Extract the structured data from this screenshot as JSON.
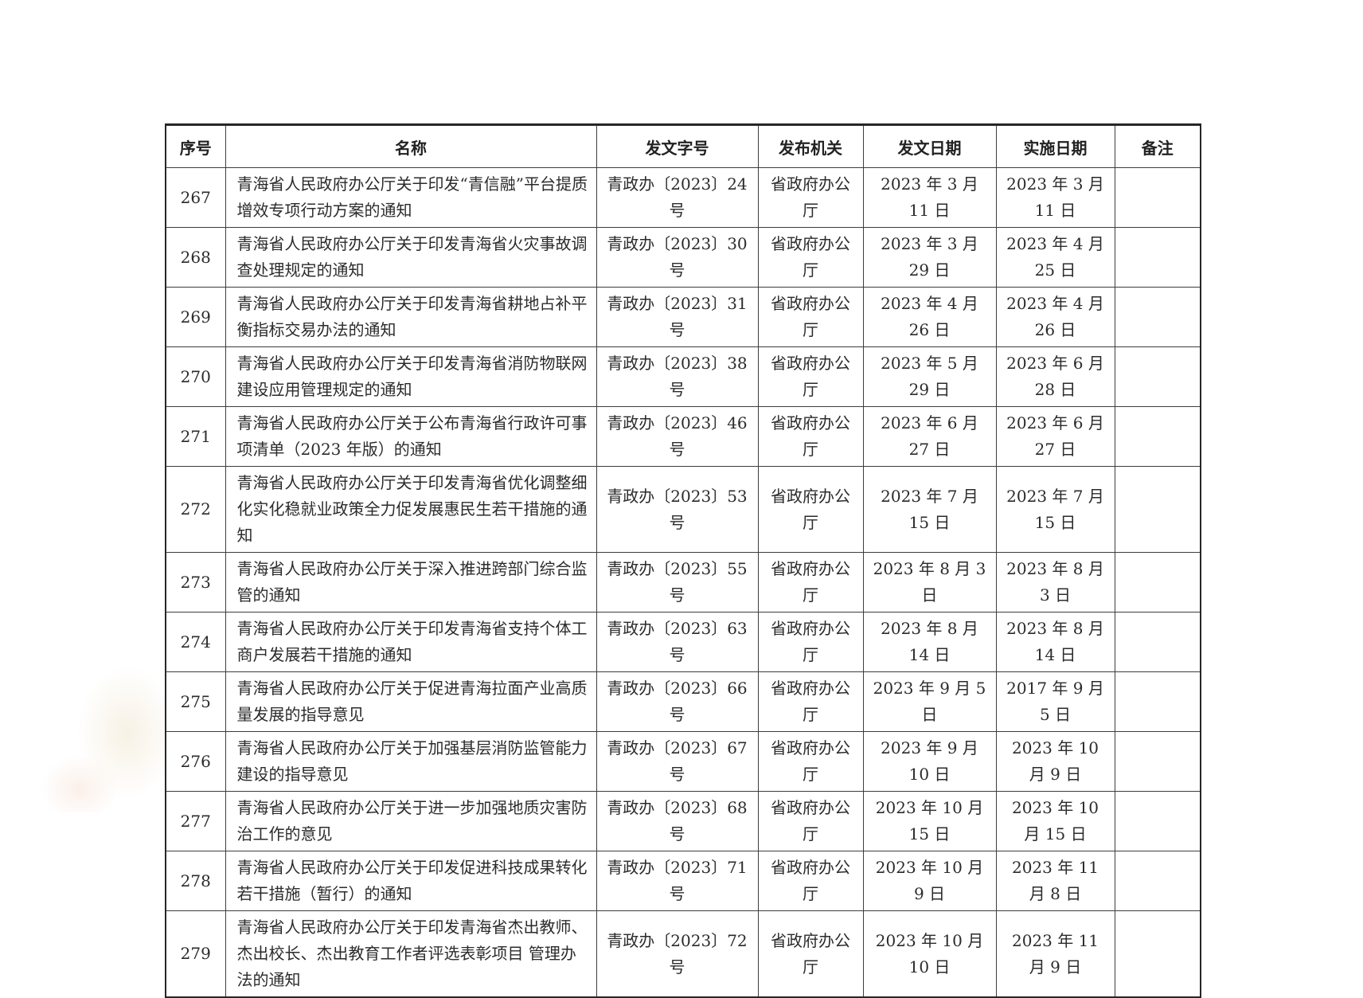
{
  "table": {
    "headers": [
      "序号",
      "名称",
      "发文字号",
      "发布机关",
      "发文日期",
      "实施日期",
      "备注"
    ],
    "rows": [
      {
        "no": "267",
        "name": "青海省人民政府办公厅关于印发“青信融”平台提质增效专项行动方案的通知",
        "doc_no": "青政办〔2023〕24 号",
        "agency": "省政府办公厅",
        "issue_date": "2023 年 3 月 11 日",
        "impl_date": "2023 年 3 月 11 日",
        "note": ""
      },
      {
        "no": "268",
        "name": "青海省人民政府办公厅关于印发青海省火灾事故调查处理规定的通知",
        "doc_no": "青政办〔2023〕30 号",
        "agency": "省政府办公厅",
        "issue_date": "2023 年 3 月 29 日",
        "impl_date": "2023 年 4 月 25 日",
        "note": ""
      },
      {
        "no": "269",
        "name": "青海省人民政府办公厅关于印发青海省耕地占补平衡指标交易办法的通知",
        "doc_no": "青政办〔2023〕31 号",
        "agency": "省政府办公厅",
        "issue_date": "2023 年 4 月 26 日",
        "impl_date": "2023 年 4 月 26 日",
        "note": ""
      },
      {
        "no": "270",
        "name": "青海省人民政府办公厅关于印发青海省消防物联网建设应用管理规定的通知",
        "doc_no": "青政办〔2023〕38 号",
        "agency": "省政府办公厅",
        "issue_date": "2023 年 5 月 29 日",
        "impl_date": "2023 年 6 月 28 日",
        "note": ""
      },
      {
        "no": "271",
        "name": "青海省人民政府办公厅关于公布青海省行政许可事项清单（2023 年版）的通知",
        "doc_no": "青政办〔2023〕46 号",
        "agency": "省政府办公厅",
        "issue_date": "2023 年 6 月 27 日",
        "impl_date": "2023 年 6 月 27 日",
        "note": ""
      },
      {
        "no": "272",
        "name": "青海省人民政府办公厅关于印发青海省优化调整细化实化稳就业政策全力促发展惠民生若干措施的通知",
        "doc_no": "青政办〔2023〕53 号",
        "agency": "省政府办公厅",
        "issue_date": "2023 年 7 月 15 日",
        "impl_date": "2023 年 7 月 15 日",
        "note": ""
      },
      {
        "no": "273",
        "name": "青海省人民政府办公厅关于深入推进跨部门综合监管的通知",
        "doc_no": "青政办〔2023〕55 号",
        "agency": "省政府办公厅",
        "issue_date": "2023 年 8 月 3 日",
        "impl_date": "2023 年 8 月 3 日",
        "note": ""
      },
      {
        "no": "274",
        "name": "青海省人民政府办公厅关于印发青海省支持个体工商户发展若干措施的通知",
        "doc_no": "青政办〔2023〕63 号",
        "agency": "省政府办公厅",
        "issue_date": "2023 年 8 月 14 日",
        "impl_date": "2023 年 8 月 14 日",
        "note": ""
      },
      {
        "no": "275",
        "name": "青海省人民政府办公厅关于促进青海拉面产业高质量发展的指导意见",
        "doc_no": "青政办〔2023〕66 号",
        "agency": "省政府办公厅",
        "issue_date": "2023 年 9 月 5 日",
        "impl_date": "2017 年 9 月 5 日",
        "note": ""
      },
      {
        "no": "276",
        "name": "青海省人民政府办公厅关于加强基层消防监管能力建设的指导意见",
        "doc_no": "青政办〔2023〕67 号",
        "agency": "省政府办公厅",
        "issue_date": "2023 年 9 月 10 日",
        "impl_date": "2023 年 10 月 9 日",
        "note": ""
      },
      {
        "no": "277",
        "name": "青海省人民政府办公厅关于进一步加强地质灾害防治工作的意见",
        "doc_no": "青政办〔2023〕68 号",
        "agency": "省政府办公厅",
        "issue_date": "2023 年 10 月 15 日",
        "impl_date": "2023 年 10 月 15 日",
        "note": ""
      },
      {
        "no": "278",
        "name": "青海省人民政府办公厅关于印发促进科技成果转化若干措施（暂行）的通知",
        "doc_no": "青政办〔2023〕71 号",
        "agency": "省政府办公厅",
        "issue_date": "2023 年 10 月 9 日",
        "impl_date": "2023 年 11 月 8 日",
        "note": ""
      },
      {
        "no": "279",
        "name": "青海省人民政府办公厅关于印发青海省杰出教师、杰出校长、杰出教育工作者评选表彰项目 管理办法的通知",
        "doc_no": "青政办〔2023〕72 号",
        "agency": "省政府办公厅",
        "issue_date": "2023 年 10 月 10 日",
        "impl_date": "2023 年 11 月 9 日",
        "note": ""
      }
    ]
  }
}
